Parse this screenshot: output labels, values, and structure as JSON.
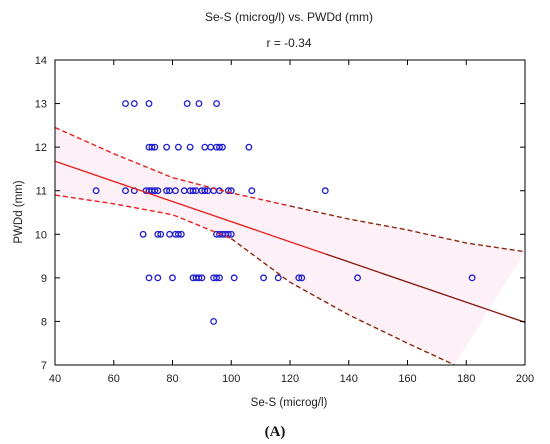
{
  "chart_data": {
    "type": "scatter",
    "title": "Se-S (microg/l) vs. PWDd (mm)",
    "subtitle": "r = -0.34",
    "xlabel": "Se-S (microg/l)",
    "ylabel": "PWDd (mm)",
    "panel_label": "(A)",
    "xlim": [
      40,
      200
    ],
    "ylim": [
      7,
      14
    ],
    "xticks": [
      40,
      60,
      80,
      100,
      120,
      140,
      160,
      180,
      200
    ],
    "yticks": [
      7,
      8,
      9,
      10,
      11,
      12,
      13,
      14
    ],
    "grid": false,
    "points": [
      [
        64,
        13
      ],
      [
        67,
        13
      ],
      [
        72,
        13
      ],
      [
        85,
        13
      ],
      [
        89,
        13
      ],
      [
        95,
        13
      ],
      [
        72,
        12
      ],
      [
        73,
        12
      ],
      [
        74,
        12
      ],
      [
        78,
        12
      ],
      [
        82,
        12
      ],
      [
        86,
        12
      ],
      [
        91,
        12
      ],
      [
        93,
        12
      ],
      [
        95,
        12
      ],
      [
        96,
        12
      ],
      [
        97,
        12
      ],
      [
        106,
        12
      ],
      [
        54,
        11
      ],
      [
        64,
        11
      ],
      [
        67,
        11
      ],
      [
        71,
        11
      ],
      [
        72,
        11
      ],
      [
        73,
        11
      ],
      [
        74,
        11
      ],
      [
        75,
        11
      ],
      [
        78,
        11
      ],
      [
        79,
        11
      ],
      [
        81,
        11
      ],
      [
        84,
        11
      ],
      [
        86,
        11
      ],
      [
        87,
        11
      ],
      [
        88,
        11
      ],
      [
        90,
        11
      ],
      [
        91,
        11
      ],
      [
        92,
        11
      ],
      [
        94,
        11
      ],
      [
        96,
        11
      ],
      [
        99,
        11
      ],
      [
        100,
        11
      ],
      [
        107,
        11
      ],
      [
        132,
        11
      ],
      [
        70,
        10
      ],
      [
        75,
        10
      ],
      [
        76,
        10
      ],
      [
        79,
        10
      ],
      [
        81,
        10
      ],
      [
        82,
        10
      ],
      [
        83,
        10
      ],
      [
        95,
        10
      ],
      [
        96,
        10
      ],
      [
        97,
        10
      ],
      [
        98,
        10
      ],
      [
        99,
        10
      ],
      [
        100,
        10
      ],
      [
        72,
        9
      ],
      [
        75,
        9
      ],
      [
        80,
        9
      ],
      [
        87,
        9
      ],
      [
        88,
        9
      ],
      [
        89,
        9
      ],
      [
        90,
        9
      ],
      [
        94,
        9
      ],
      [
        95,
        9
      ],
      [
        96,
        9
      ],
      [
        101,
        9
      ],
      [
        111,
        9
      ],
      [
        116,
        9
      ],
      [
        123,
        9
      ],
      [
        124,
        9
      ],
      [
        143,
        9
      ],
      [
        182,
        9
      ],
      [
        94,
        8
      ]
    ],
    "regression": {
      "slope": -0.0231,
      "intercept": 12.6
    },
    "ci_upper": [
      [
        40,
        12.45
      ],
      [
        60,
        11.85
      ],
      [
        80,
        11.3
      ],
      [
        100,
        10.95
      ],
      [
        120,
        10.65
      ],
      [
        140,
        10.35
      ],
      [
        160,
        10.1
      ],
      [
        180,
        9.8
      ],
      [
        200,
        9.6
      ]
    ],
    "ci_lower": [
      [
        40,
        10.9
      ],
      [
        60,
        10.7
      ],
      [
        80,
        10.45
      ],
      [
        100,
        9.9
      ],
      [
        120,
        8.9
      ],
      [
        140,
        8.15
      ],
      [
        160,
        7.5
      ],
      [
        176,
        7.0
      ]
    ],
    "colors": {
      "points": "#1f1fd0",
      "fit_in_range": "#e8201e",
      "fit_out_range": "#8b1a10",
      "ci_left": "#e8201e",
      "ci_right": "#8b2a10",
      "ci_band": "#f6c6e0"
    }
  }
}
